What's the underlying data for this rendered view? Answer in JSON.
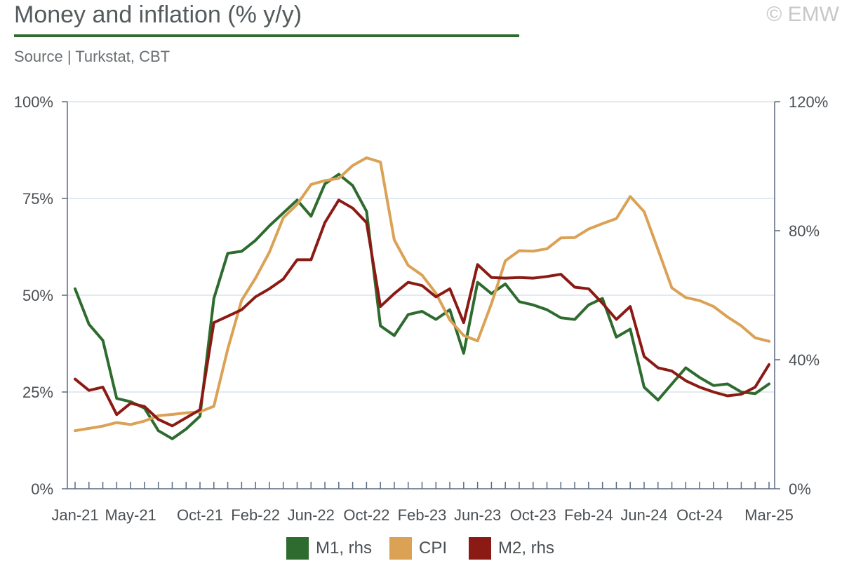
{
  "header": {
    "title": "Money and inflation (% y/y)",
    "source": "Source | Turkstat, CBT",
    "copyright": "© EMW"
  },
  "colors": {
    "title_rule": "#2e6b2e",
    "grid": "#d6e4ee",
    "axis": "#5a6a80",
    "m1": "#2e6b2e",
    "cpi": "#dba155",
    "m2": "#8b1a14"
  },
  "legend": [
    {
      "label": "M1, rhs",
      "color_key": "m1"
    },
    {
      "label": "CPI",
      "color_key": "cpi"
    },
    {
      "label": "M2, rhs",
      "color_key": "m2"
    }
  ],
  "chart_data": {
    "type": "line",
    "title": "Money and inflation (% y/y)",
    "x_ticks": [
      "Jan-21",
      "May-21",
      "Oct-21",
      "Feb-22",
      "Jun-22",
      "Oct-22",
      "Feb-23",
      "Jun-23",
      "Oct-23",
      "Feb-24",
      "Jun-24",
      "Oct-24",
      "Mar-25"
    ],
    "x_tick_index": [
      0,
      4,
      9,
      13,
      17,
      21,
      25,
      29,
      33,
      37,
      41,
      45,
      50
    ],
    "n_points": 51,
    "y_left": {
      "ticks": [
        "0%",
        "25%",
        "50%",
        "75%",
        "100%"
      ],
      "values": [
        0,
        25,
        50,
        75,
        100
      ],
      "range": [
        0,
        100
      ]
    },
    "y_right": {
      "ticks": [
        "0%",
        "40%",
        "80%",
        "120%"
      ],
      "values": [
        0,
        40,
        80,
        120
      ],
      "range": [
        0,
        120
      ]
    },
    "grid": true,
    "legend_position": "bottom",
    "series": [
      {
        "name": "M1, rhs",
        "color_key": "m1",
        "axis": "right",
        "values": [
          62,
          51,
          46,
          28,
          27,
          25,
          18,
          15.5,
          18.5,
          22.5,
          59,
          73,
          73.6,
          77,
          81.5,
          85.5,
          89.5,
          84.5,
          94.5,
          97.5,
          94,
          86,
          50.5,
          47.5,
          54,
          55,
          52.5,
          55.5,
          42,
          64,
          60.5,
          63.5,
          58,
          57,
          55.5,
          53,
          52.5,
          57,
          59,
          47,
          49.5,
          31.5,
          27.5,
          32.5,
          37.5,
          34.5,
          32,
          32.5,
          30,
          29.5,
          32.5
        ]
      },
      {
        "name": "CPI",
        "color_key": "cpi",
        "axis": "left",
        "values": [
          15,
          15.6,
          16.2,
          17.1,
          16.6,
          17.5,
          18.9,
          19.2,
          19.6,
          19.9,
          21.3,
          36.1,
          48.7,
          54.4,
          61.1,
          70,
          73.5,
          78.6,
          79.6,
          80.2,
          83.5,
          85.5,
          84.4,
          64.3,
          57.7,
          55.2,
          50.5,
          43.6,
          39.6,
          38.2,
          47.8,
          58.9,
          61.5,
          61.4,
          62,
          64.8,
          64.9,
          67.1,
          68.5,
          69.8,
          75.5,
          71.6,
          61.8,
          51.9,
          49.4,
          48.6,
          47.1,
          44.4,
          42.1,
          39,
          38.1
        ]
      },
      {
        "name": "M2, rhs",
        "color_key": "m2",
        "axis": "right",
        "values": [
          34,
          30.5,
          31.5,
          23,
          26.5,
          25.5,
          21.5,
          19.5,
          22,
          24.5,
          51.5,
          53.5,
          55.5,
          59.5,
          62,
          65,
          71,
          71,
          82.5,
          89.5,
          87,
          82.5,
          56.5,
          60.5,
          64,
          63,
          59.5,
          62,
          51.5,
          69.5,
          65.5,
          65.3,
          65.5,
          65.3,
          65.8,
          66.5,
          62.5,
          62,
          57.5,
          52.5,
          56.5,
          41,
          37.5,
          36.5,
          33.5,
          31.5,
          30,
          28.8,
          29.3,
          31.5,
          38.5
        ]
      }
    ]
  }
}
